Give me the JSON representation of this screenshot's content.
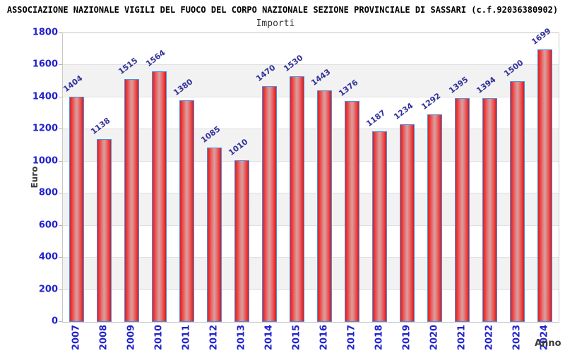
{
  "header": {
    "title": "ASSOCIAZIONE NAZIONALE VIGILI DEL FUOCO DEL CORPO NAZIONALE SEZIONE PROVINCIALE DI SASSARI (c.f.92036380902)",
    "subtitle": "Importi"
  },
  "chart_data": {
    "type": "bar",
    "title": "ASSOCIAZIONE NAZIONALE VIGILI DEL FUOCO DEL CORPO NAZIONALE SEZIONE PROVINCIALE DI SASSARI (c.f.92036380902)",
    "subtitle": "Importi",
    "xlabel": "Anno",
    "ylabel": "Euro",
    "categories": [
      "2007",
      "2008",
      "2009",
      "2010",
      "2011",
      "2012",
      "2013",
      "2014",
      "2015",
      "2016",
      "2017",
      "2018",
      "2019",
      "2020",
      "2021",
      "2022",
      "2023",
      "2024"
    ],
    "values": [
      1404,
      1138,
      1515,
      1564,
      1380,
      1085,
      1010,
      1470,
      1530,
      1443,
      1376,
      1187,
      1234,
      1292,
      1395,
      1394,
      1500,
      1699
    ],
    "ylim": [
      0,
      1800
    ],
    "ytick_step": 200,
    "yticks": [
      0,
      200,
      400,
      600,
      800,
      1000,
      1200,
      1400,
      1600,
      1800
    ],
    "grid": "alternating-horizontal-bands",
    "legend": "none",
    "colors": {
      "bar_fill": "#e03131",
      "bar_border": "#4a90e2",
      "value_label": "#32329b",
      "tick_label": "#2222cc",
      "axis_title": "#3a3a3a",
      "band_alt": "#f2f2f2",
      "band_main": "#ffffff",
      "grid_line": "#e0e0e0",
      "plot_border": "#c9c9c9"
    }
  }
}
